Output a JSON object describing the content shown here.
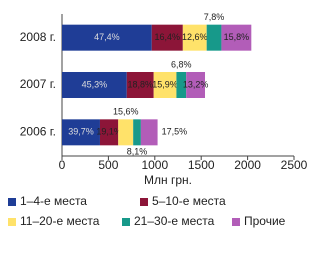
{
  "chart_data": {
    "type": "stacked-barh",
    "x_label": "Млн грн.",
    "categories": [
      "2008 г.",
      "2007 г.",
      "2006 г."
    ],
    "series": [
      {
        "name": "1–4-е места",
        "color": "#1f3d96",
        "values": [
          967,
          698,
          409
        ],
        "percent_labels": [
          "47,4%",
          "45,3%",
          "39,7%"
        ]
      },
      {
        "name": "5–10-е места",
        "color": "#8c1538",
        "values": [
          335,
          290,
          197
        ],
        "percent_labels": [
          "16,4%",
          "18,8%",
          "19,1%"
        ]
      },
      {
        "name": "11–20-е места",
        "color": "#ffe26a",
        "values": [
          257,
          245,
          161
        ],
        "percent_labels": [
          "12,6%",
          "15,9%",
          "15,6%"
        ]
      },
      {
        "name": "21–30-е места",
        "color": "#17998a",
        "values": [
          159,
          105,
          83
        ],
        "percent_labels": [
          "7,8%",
          "6,8%",
          "8,1%"
        ]
      },
      {
        "name": "Прочие",
        "color": "#b25db8",
        "values": [
          322,
          203,
          180
        ],
        "percent_labels": [
          "15,8%",
          "13,2%",
          "17,5%"
        ]
      }
    ],
    "xlim": [
      0,
      2500
    ],
    "xticks": [
      0,
      500,
      1000,
      1500,
      2000,
      2500
    ]
  }
}
